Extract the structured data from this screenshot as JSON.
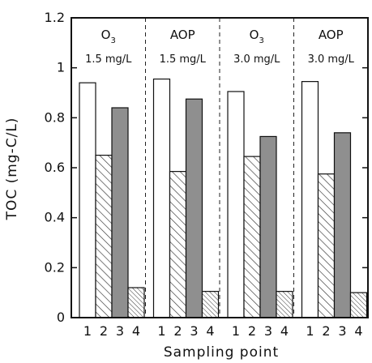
{
  "chart_data": {
    "type": "bar",
    "ylabel": "TOC (mg-C/L)",
    "xlabel": "Sampling point",
    "ylim": [
      0,
      1.2
    ],
    "y_ticks": [
      "0",
      "0.2",
      "0.4",
      "0.6",
      "0.8",
      "1",
      "1.2"
    ],
    "categories": [
      "1",
      "2",
      "3",
      "4"
    ],
    "bar_styles": [
      "white",
      "diagonal-hatch",
      "gray",
      "dense-hatch"
    ],
    "panels": [
      {
        "label": "O",
        "label_sub": "3",
        "dose": "1.5 mg/L",
        "values": [
          0.94,
          0.65,
          0.84,
          0.12
        ]
      },
      {
        "label": "AOP",
        "label_sub": "",
        "dose": "1.5 mg/L",
        "values": [
          0.955,
          0.585,
          0.875,
          0.105
        ]
      },
      {
        "label": "O",
        "label_sub": "3",
        "dose": "3.0 mg/L",
        "values": [
          0.905,
          0.645,
          0.725,
          0.105
        ]
      },
      {
        "label": "AOP",
        "label_sub": "",
        "dose": "3.0 mg/L",
        "values": [
          0.945,
          0.575,
          0.74,
          0.1
        ]
      }
    ],
    "grid": false,
    "colors": {
      "white_bar": "#ffffff",
      "gray_bar": "#8f8f8f",
      "outline": "#111111"
    }
  }
}
